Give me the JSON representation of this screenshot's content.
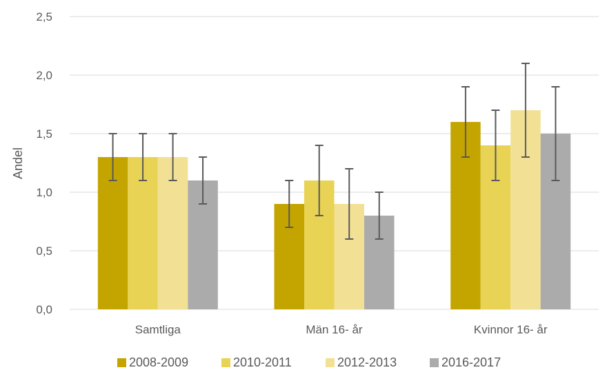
{
  "chart_data": {
    "type": "bar",
    "ylabel": "Andel",
    "xlabel": "",
    "ylim": [
      0,
      2.5
    ],
    "yticks": [
      "0,0",
      "0,5",
      "1,0",
      "1,5",
      "2,0",
      "2,5"
    ],
    "yticks_values": [
      0,
      0.5,
      1.0,
      1.5,
      2.0,
      2.5
    ],
    "grid": true,
    "legend_position": "bottom",
    "categories": [
      "Samtliga",
      "Män 16- år",
      "Kvinnor 16- år"
    ],
    "series": [
      {
        "name": "2008-2009",
        "color": "#C4A500",
        "values": [
          1.3,
          0.9,
          1.6
        ],
        "err_low": [
          1.1,
          0.7,
          1.3
        ],
        "err_high": [
          1.5,
          1.1,
          1.9
        ]
      },
      {
        "name": "2010-2011",
        "color": "#E8D354",
        "values": [
          1.3,
          1.1,
          1.4
        ],
        "err_low": [
          1.1,
          0.8,
          1.1
        ],
        "err_high": [
          1.5,
          1.4,
          1.7
        ]
      },
      {
        "name": "2012-2013",
        "color": "#F2E195",
        "values": [
          1.3,
          0.9,
          1.7
        ],
        "err_low": [
          1.1,
          0.6,
          1.3
        ],
        "err_high": [
          1.5,
          1.2,
          2.1
        ]
      },
      {
        "name": "2016-2017",
        "color": "#ABABAB",
        "values": [
          1.1,
          0.8,
          1.5
        ],
        "err_low": [
          0.9,
          0.6,
          1.1
        ],
        "err_high": [
          1.3,
          1.0,
          1.9
        ]
      }
    ],
    "colors": {
      "gridline": "#D9D9D9",
      "error_bar": "#595959",
      "text": "#595959"
    }
  }
}
